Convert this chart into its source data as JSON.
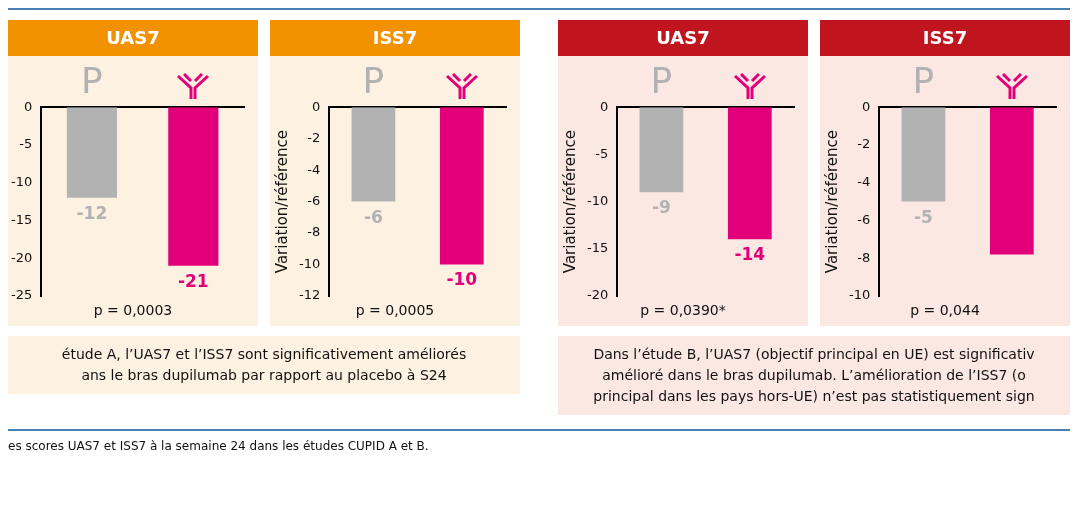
{
  "chart_data": [
    {
      "type": "bar",
      "title": "UAS7",
      "categories": [
        "P",
        null
      ],
      "values": [
        -12,
        -21
      ],
      "colors": [
        "#b2b2b2",
        "#e2007a"
      ],
      "ylim": [
        -25,
        0
      ],
      "yticks": [
        0,
        -5,
        -10,
        -15,
        -20,
        -25
      ],
      "data_labels": true,
      "grid": false,
      "legend": false,
      "annotations": [
        "p = 0,0003",
        "étude A, l’UAS7 et l’ISS7 sont significativement améliorés\nans le bras dupilumab par rapport au placebo à S24",
        "es scores UAS7 et ISS7 à la semaine 24 dans les études CUPID A et B."
      ]
    },
    {
      "type": "bar",
      "title": "ISS7",
      "ylabel": "Variation/référence",
      "categories": [
        "P",
        null
      ],
      "values": [
        -6,
        -10
      ],
      "colors": [
        "#b2b2b2",
        "#e2007a"
      ],
      "ylim": [
        -12,
        0
      ],
      "yticks": [
        0,
        -2,
        -4,
        -6,
        -8,
        -10,
        -12
      ],
      "data_labels": true,
      "grid": false,
      "legend": false,
      "annotations": [
        "p = 0,0005"
      ]
    },
    {
      "type": "bar",
      "title": "UAS7",
      "ylabel": "Variation/référence",
      "categories": [
        "P",
        null
      ],
      "values": [
        -9,
        -14
      ],
      "colors": [
        "#b2b2b2",
        "#e2007a"
      ],
      "ylim": [
        -20,
        0
      ],
      "yticks": [
        0,
        -5,
        -10,
        -15,
        -20
      ],
      "data_labels": true,
      "grid": false,
      "legend": false,
      "annotations": [
        "p = 0,0390*",
        "Dans l’étude B, l’UAS7 (objectif principal en UE) est significativ\namélioré dans le bras dupilumab. L’amélioration de l’ISS7 (o\nprincipal dans les pays hors-UE) n’est pas statistiquement sign"
      ]
    },
    {
      "type": "bar",
      "title": "ISS7",
      "ylabel": "Variation/référence",
      "categories": [
        "P",
        null
      ],
      "values": [
        -5,
        -7.8
      ],
      "value_labels": [
        "-5",
        null
      ],
      "colors": [
        "#b2b2b2",
        "#e2007a"
      ],
      "ylim": [
        -10,
        0
      ],
      "yticks": [
        0,
        -2,
        -4,
        -6,
        -8,
        -10
      ],
      "grid": false,
      "legend": false,
      "annotations": [
        "p = 0,044"
      ]
    }
  ]
}
